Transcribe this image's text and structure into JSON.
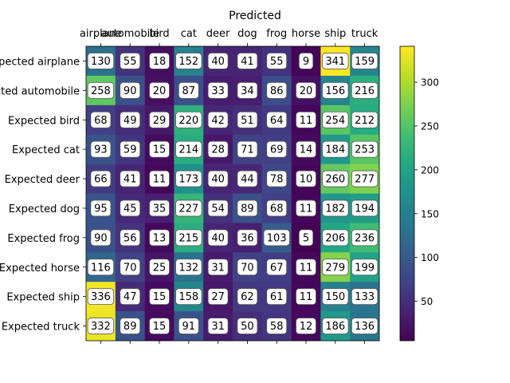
{
  "chart_data": {
    "type": "heatmap",
    "title": "Predicted",
    "xlabel": "",
    "ylabel": "",
    "x_position": "top",
    "colormap": "viridis",
    "colorbar": {
      "position": "right",
      "range": [
        5,
        341
      ],
      "ticks": [
        "50",
        "100",
        "150",
        "200",
        "250",
        "300"
      ],
      "tick_values": [
        50,
        100,
        150,
        200,
        250,
        300
      ]
    },
    "columns": [
      "airplane",
      "automobile",
      "bird",
      "cat",
      "deer",
      "dog",
      "frog",
      "horse",
      "ship",
      "truck"
    ],
    "rows": [
      "Expected airplane",
      "Expected automobile",
      "Expected bird",
      "Expected cat",
      "Expected deer",
      "Expected dog",
      "Expected frog",
      "Expected horse",
      "Expected ship",
      "Expected truck"
    ],
    "values": [
      [
        130,
        55,
        18,
        152,
        40,
        41,
        55,
        9,
        341,
        159
      ],
      [
        258,
        90,
        20,
        87,
        33,
        34,
        86,
        20,
        156,
        216
      ],
      [
        68,
        49,
        29,
        220,
        42,
        51,
        64,
        11,
        254,
        212
      ],
      [
        93,
        59,
        15,
        214,
        28,
        71,
        69,
        14,
        184,
        253
      ],
      [
        66,
        41,
        11,
        173,
        40,
        44,
        78,
        10,
        260,
        277
      ],
      [
        95,
        45,
        35,
        227,
        54,
        89,
        68,
        11,
        182,
        194
      ],
      [
        90,
        56,
        13,
        215,
        40,
        36,
        103,
        5,
        206,
        236
      ],
      [
        116,
        70,
        25,
        132,
        31,
        70,
        67,
        11,
        279,
        199
      ],
      [
        336,
        47,
        15,
        158,
        27,
        62,
        61,
        11,
        150,
        133
      ],
      [
        332,
        89,
        15,
        91,
        31,
        50,
        58,
        12,
        186,
        136
      ]
    ]
  }
}
